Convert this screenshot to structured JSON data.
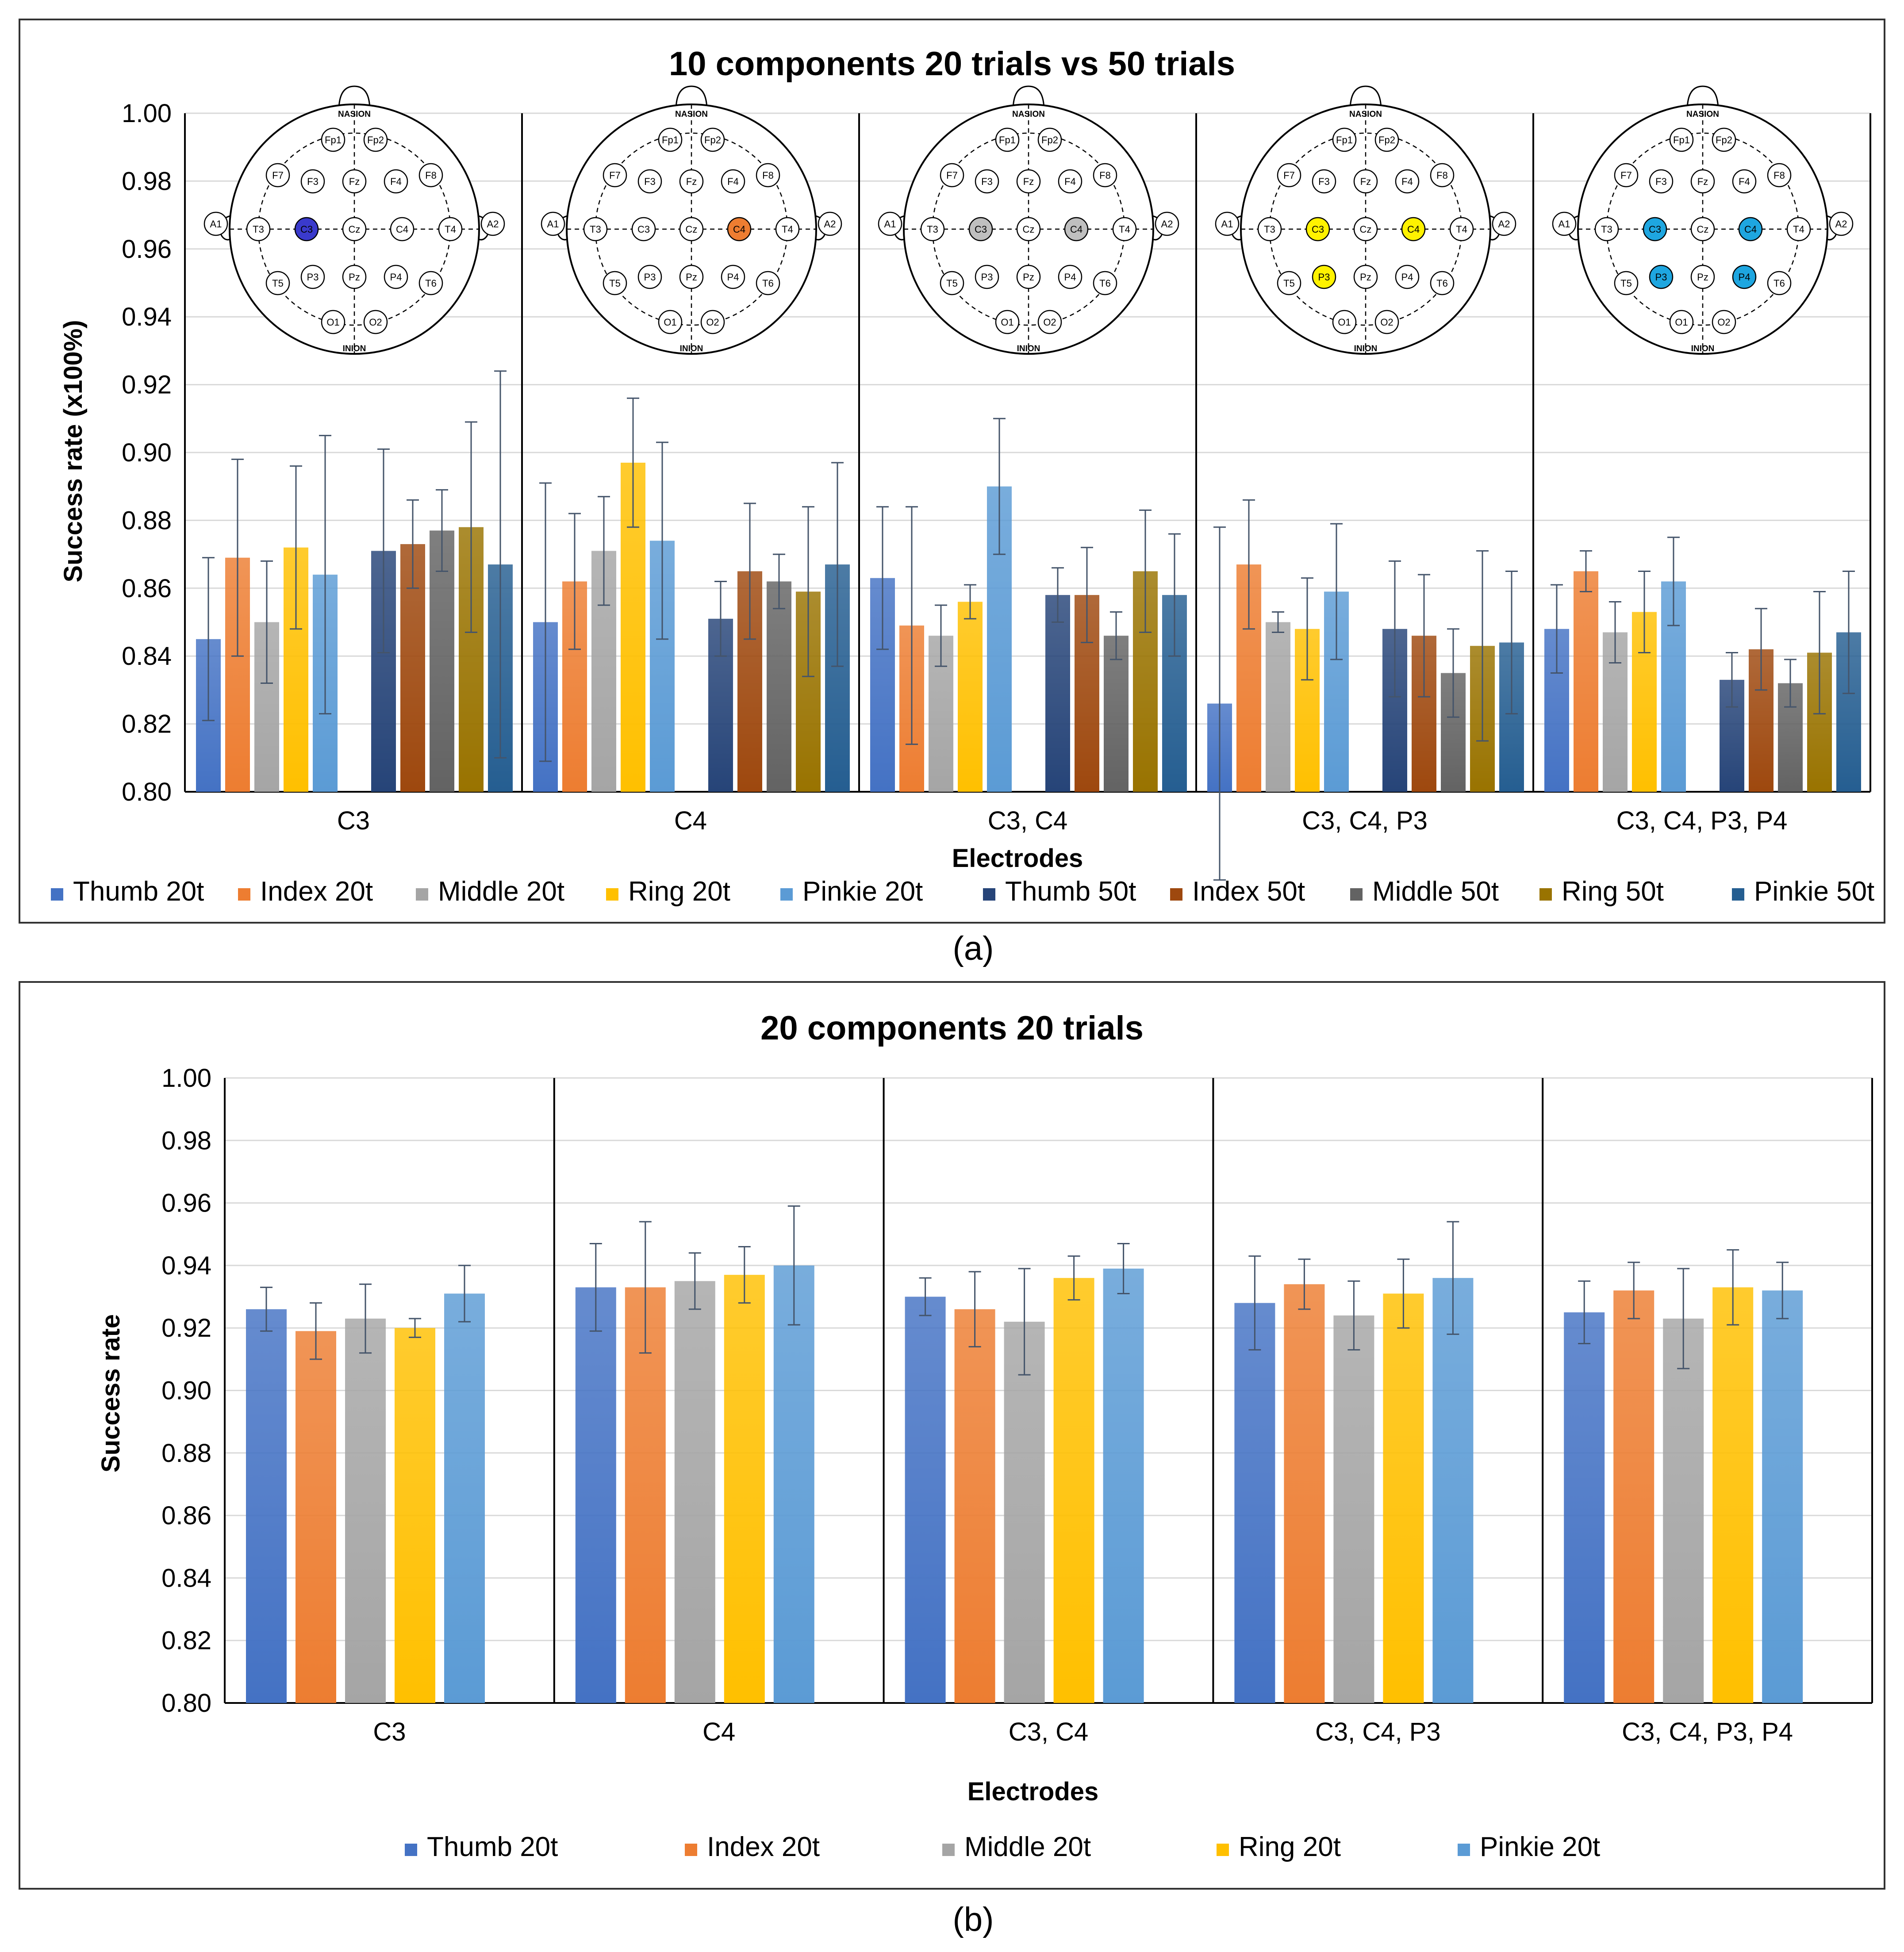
{
  "figure": {
    "label_a": "(a)",
    "label_b": "(b)"
  },
  "colors": {
    "thumb_20t": "#4472C4",
    "index_20t": "#ED7D31",
    "middle_20t": "#A5A5A5",
    "ring_20t": "#FFC000",
    "pinkie_20t": "#5B9BD5",
    "thumb_50t": "#264478",
    "index_50t": "#9E480E",
    "middle_50t": "#636363",
    "ring_50t": "#997300",
    "pinkie_50t": "#255E91",
    "eeg_c3_a": "#3A3ACC",
    "eeg_c4_a": "#ED7D31",
    "eeg_gray": "#BFBFBF",
    "eeg_yellow": "#FFF200",
    "eeg_blue": "#1EA6E0"
  },
  "chart_data": [
    {
      "type": "bar",
      "title": "10 components 20 trials vs 50 trials",
      "xlabel": "Electrodes",
      "ylabel": "Success rate (x100%)",
      "ylim": [
        0.8,
        1.0
      ],
      "yticks": [
        "0.80",
        "0.82",
        "0.84",
        "0.86",
        "0.88",
        "0.90",
        "0.92",
        "0.94",
        "0.96",
        "0.98",
        "1.00"
      ],
      "categories": [
        "C3",
        "C4",
        "C3, C4",
        "C3, C4, P3",
        "C3, C4, P3, P4"
      ],
      "legend_position": "bottom",
      "series": [
        {
          "name": "Thumb 20t",
          "values": [
            0.845,
            0.85,
            0.863,
            0.826,
            0.848
          ],
          "errors": [
            0.024,
            0.041,
            0.021,
            0.052,
            0.013
          ]
        },
        {
          "name": "Index 20t",
          "values": [
            0.869,
            0.862,
            0.849,
            0.867,
            0.865
          ],
          "errors": [
            0.029,
            0.02,
            0.035,
            0.019,
            0.006
          ]
        },
        {
          "name": "Middle 20t",
          "values": [
            0.85,
            0.871,
            0.846,
            0.85,
            0.847
          ],
          "errors": [
            0.018,
            0.016,
            0.009,
            0.003,
            0.009
          ]
        },
        {
          "name": "Ring 20t",
          "values": [
            0.872,
            0.897,
            0.856,
            0.848,
            0.853
          ],
          "errors": [
            0.024,
            0.019,
            0.005,
            0.015,
            0.012
          ]
        },
        {
          "name": "Pinkie 20t",
          "values": [
            0.864,
            0.874,
            0.89,
            0.859,
            0.862
          ],
          "errors": [
            0.041,
            0.029,
            0.02,
            0.02,
            0.013
          ]
        },
        {
          "name": "Thumb 50t",
          "values": [
            0.871,
            0.851,
            0.858,
            0.848,
            0.833
          ],
          "errors": [
            0.03,
            0.011,
            0.008,
            0.02,
            0.008
          ]
        },
        {
          "name": "Index 50t",
          "values": [
            0.873,
            0.865,
            0.858,
            0.846,
            0.842
          ],
          "errors": [
            0.013,
            0.02,
            0.014,
            0.018,
            0.012
          ]
        },
        {
          "name": "Middle 50t",
          "values": [
            0.877,
            0.862,
            0.846,
            0.835,
            0.832
          ],
          "errors": [
            0.012,
            0.008,
            0.007,
            0.013,
            0.007
          ]
        },
        {
          "name": "Ring 50t",
          "values": [
            0.878,
            0.859,
            0.865,
            0.843,
            0.841
          ],
          "errors": [
            0.031,
            0.025,
            0.018,
            0.028,
            0.018
          ]
        },
        {
          "name": "Pinkie 50t",
          "values": [
            0.867,
            0.867,
            0.858,
            0.844,
            0.847
          ],
          "errors": [
            0.057,
            0.03,
            0.018,
            0.021,
            0.018
          ]
        }
      ]
    },
    {
      "type": "bar",
      "title": "20 components 20 trials",
      "xlabel": "Electrodes",
      "ylabel": "Success rate",
      "ylim": [
        0.8,
        1.0
      ],
      "yticks": [
        "0.80",
        "0.82",
        "0.84",
        "0.86",
        "0.88",
        "0.90",
        "0.92",
        "0.94",
        "0.96",
        "0.98",
        "1.00"
      ],
      "categories": [
        "C3",
        "C4",
        "C3, C4",
        "C3, C4, P3",
        "C3, C4, P3, P4"
      ],
      "legend_position": "bottom",
      "series": [
        {
          "name": "Thumb 20t",
          "values": [
            0.926,
            0.933,
            0.93,
            0.928,
            0.925
          ],
          "errors": [
            0.007,
            0.014,
            0.006,
            0.015,
            0.01
          ]
        },
        {
          "name": "Index 20t",
          "values": [
            0.919,
            0.933,
            0.926,
            0.934,
            0.932
          ],
          "errors": [
            0.009,
            0.021,
            0.012,
            0.008,
            0.009
          ]
        },
        {
          "name": "Middle 20t",
          "values": [
            0.923,
            0.935,
            0.922,
            0.924,
            0.923
          ],
          "errors": [
            0.011,
            0.009,
            0.017,
            0.011,
            0.016
          ]
        },
        {
          "name": "Ring 20t",
          "values": [
            0.92,
            0.937,
            0.936,
            0.931,
            0.933
          ],
          "errors": [
            0.003,
            0.009,
            0.007,
            0.011,
            0.012
          ]
        },
        {
          "name": "Pinkie 20t",
          "values": [
            0.931,
            0.94,
            0.939,
            0.936,
            0.932
          ],
          "errors": [
            0.009,
            0.019,
            0.008,
            0.018,
            0.009
          ]
        }
      ]
    }
  ],
  "eeg_maps": {
    "nasion": "NASION",
    "inion": "INION",
    "electrodes": [
      "Fp1",
      "Fp2",
      "F7",
      "F3",
      "Fz",
      "F4",
      "F8",
      "A1",
      "T3",
      "C3",
      "Cz",
      "C4",
      "T4",
      "A2",
      "T5",
      "P3",
      "Pz",
      "P4",
      "T6",
      "O1",
      "O2"
    ],
    "highlights": [
      [
        "C3"
      ],
      [
        "C4"
      ],
      [
        "C3",
        "C4"
      ],
      [
        "C3",
        "C4",
        "P3"
      ],
      [
        "C3",
        "C4",
        "P3",
        "P4"
      ]
    ]
  }
}
